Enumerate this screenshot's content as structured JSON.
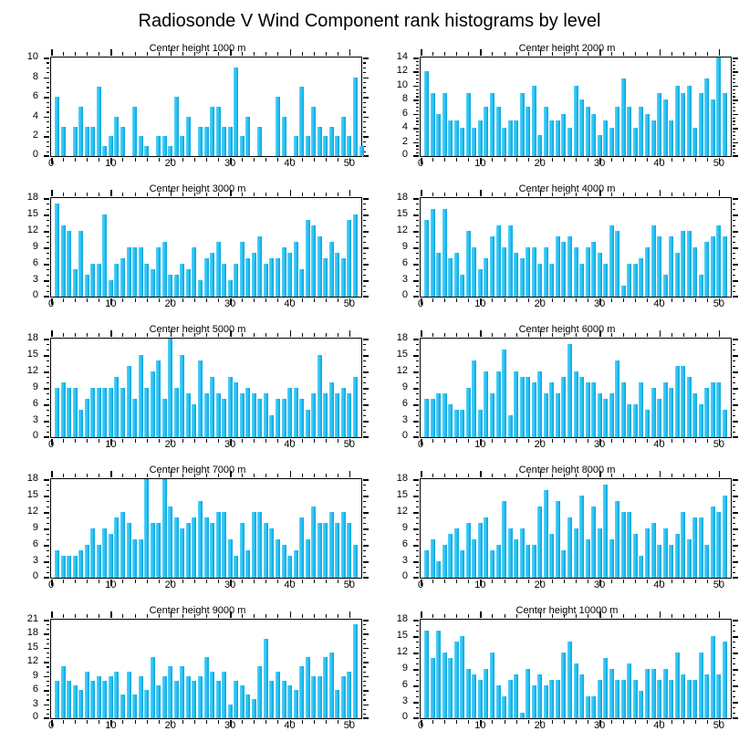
{
  "page_title": "Radiosonde V Wind Component rank histograms by level",
  "colors": {
    "bar_light": "#55d2f8",
    "bar": "#27c0f2",
    "bar_edge": "#0aa3dc",
    "axis": "#000000"
  },
  "chart_data": [
    {
      "type": "bar",
      "title": "Center height 1000 m",
      "xlim": [
        0,
        52
      ],
      "x_ticks": [
        0,
        10,
        20,
        30,
        40,
        50
      ],
      "ylim": [
        0,
        10
      ],
      "y_ticks": [
        0,
        2,
        4,
        6,
        8,
        10
      ],
      "x_first": 1,
      "values": [
        6,
        3,
        0,
        3,
        5,
        3,
        3,
        7,
        1,
        2,
        4,
        3,
        0,
        5,
        2,
        1,
        0,
        2,
        2,
        1,
        6,
        2,
        4,
        0,
        3,
        3,
        5,
        5,
        3,
        3,
        9,
        2,
        4,
        0,
        3,
        0,
        0,
        6,
        4,
        0,
        2,
        7,
        2,
        5,
        3,
        2,
        3,
        2,
        4,
        2,
        8,
        1
      ]
    },
    {
      "type": "bar",
      "title": "Center height 2000 m",
      "xlim": [
        0,
        52
      ],
      "x_ticks": [
        0,
        10,
        20,
        30,
        40,
        50
      ],
      "ylim": [
        0,
        14
      ],
      "y_ticks": [
        0,
        2,
        4,
        6,
        8,
        10,
        12,
        14
      ],
      "x_first": 1,
      "values": [
        12,
        9,
        6,
        9,
        5,
        5,
        4,
        9,
        4,
        5,
        7,
        9,
        7,
        4,
        5,
        5,
        9,
        7,
        10,
        3,
        7,
        5,
        5,
        6,
        4,
        10,
        8,
        7,
        6,
        3,
        5,
        4,
        7,
        11,
        7,
        4,
        7,
        6,
        5,
        9,
        8,
        5,
        10,
        9,
        10,
        4,
        9,
        11,
        8,
        14,
        9
      ]
    },
    {
      "type": "bar",
      "title": "Center height 3000 m",
      "xlim": [
        0,
        52
      ],
      "x_ticks": [
        0,
        10,
        20,
        30,
        40,
        50
      ],
      "ylim": [
        0,
        18
      ],
      "y_ticks": [
        0,
        3,
        6,
        9,
        12,
        15,
        18
      ],
      "x_first": 1,
      "values": [
        17,
        13,
        12,
        5,
        12,
        4,
        6,
        6,
        15,
        3,
        6,
        7,
        9,
        9,
        9,
        6,
        5,
        9,
        10,
        4,
        4,
        6,
        5,
        9,
        3,
        7,
        8,
        10,
        6,
        3,
        6,
        10,
        7,
        8,
        11,
        6,
        7,
        7,
        9,
        8,
        10,
        5,
        14,
        13,
        11,
        7,
        10,
        8,
        7,
        14,
        15
      ]
    },
    {
      "type": "bar",
      "title": "Center height 4000 m",
      "xlim": [
        0,
        52
      ],
      "x_ticks": [
        0,
        10,
        20,
        30,
        40,
        50
      ],
      "ylim": [
        0,
        18
      ],
      "y_ticks": [
        0,
        3,
        6,
        9,
        12,
        15,
        18
      ],
      "x_first": 1,
      "values": [
        14,
        16,
        8,
        16,
        7,
        8,
        4,
        12,
        9,
        5,
        7,
        11,
        13,
        9,
        13,
        8,
        7,
        9,
        9,
        6,
        9,
        6,
        11,
        10,
        11,
        9,
        6,
        9,
        10,
        8,
        6,
        13,
        12,
        2,
        6,
        6,
        7,
        9,
        13,
        11,
        4,
        11,
        8,
        12,
        12,
        9,
        4,
        10,
        11,
        13,
        11
      ]
    },
    {
      "type": "bar",
      "title": "Center height 5000 m",
      "xlim": [
        0,
        52
      ],
      "x_ticks": [
        0,
        10,
        20,
        30,
        40,
        50
      ],
      "ylim": [
        0,
        18
      ],
      "y_ticks": [
        0,
        3,
        6,
        9,
        12,
        15,
        18
      ],
      "x_first": 1,
      "values": [
        9,
        10,
        9,
        9,
        5,
        7,
        9,
        9,
        9,
        9,
        11,
        9,
        13,
        7,
        15,
        9,
        12,
        14,
        7,
        18,
        9,
        15,
        8,
        6,
        14,
        8,
        11,
        8,
        7,
        11,
        10,
        8,
        9,
        8,
        7,
        8,
        4,
        7,
        7,
        9,
        9,
        7,
        5,
        8,
        15,
        8,
        10,
        8,
        9,
        8,
        11
      ]
    },
    {
      "type": "bar",
      "title": "Center height 6000 m",
      "xlim": [
        0,
        52
      ],
      "x_ticks": [
        0,
        10,
        20,
        30,
        40,
        50
      ],
      "ylim": [
        0,
        18
      ],
      "y_ticks": [
        0,
        3,
        6,
        9,
        12,
        15,
        18
      ],
      "x_first": 1,
      "values": [
        7,
        7,
        8,
        8,
        6,
        5,
        5,
        9,
        14,
        5,
        12,
        8,
        12,
        16,
        4,
        12,
        11,
        11,
        10,
        12,
        8,
        10,
        8,
        11,
        17,
        12,
        11,
        10,
        10,
        8,
        7,
        8,
        14,
        10,
        6,
        6,
        10,
        5,
        9,
        7,
        10,
        9,
        13,
        13,
        11,
        8,
        6,
        9,
        10,
        10,
        5
      ]
    },
    {
      "type": "bar",
      "title": "Center height 7000 m",
      "xlim": [
        0,
        52
      ],
      "x_ticks": [
        0,
        10,
        20,
        30,
        40,
        50
      ],
      "ylim": [
        0,
        18
      ],
      "y_ticks": [
        0,
        3,
        6,
        9,
        12,
        15,
        18
      ],
      "x_first": 1,
      "values": [
        5,
        4,
        4,
        4,
        5,
        6,
        9,
        6,
        9,
        8,
        11,
        12,
        10,
        7,
        7,
        18,
        10,
        10,
        18,
        13,
        11,
        9,
        10,
        11,
        14,
        11,
        10,
        12,
        12,
        7,
        4,
        10,
        5,
        12,
        12,
        10,
        9,
        7,
        6,
        4,
        5,
        11,
        7,
        13,
        10,
        10,
        12,
        10,
        12,
        10,
        6
      ]
    },
    {
      "type": "bar",
      "title": "Center height 8000 m",
      "xlim": [
        0,
        52
      ],
      "x_ticks": [
        0,
        10,
        20,
        30,
        40,
        50
      ],
      "ylim": [
        0,
        18
      ],
      "y_ticks": [
        0,
        3,
        6,
        9,
        12,
        15,
        18
      ],
      "x_first": 1,
      "values": [
        5,
        7,
        3,
        6,
        8,
        9,
        5,
        10,
        7,
        10,
        11,
        5,
        6,
        14,
        9,
        7,
        9,
        6,
        6,
        13,
        16,
        8,
        14,
        5,
        11,
        9,
        15,
        7,
        13,
        9,
        17,
        7,
        14,
        12,
        12,
        8,
        4,
        9,
        10,
        6,
        9,
        6,
        8,
        12,
        7,
        11,
        11,
        6,
        13,
        12,
        15
      ]
    },
    {
      "type": "bar",
      "title": "Center height 9000 m",
      "xlim": [
        0,
        52
      ],
      "x_ticks": [
        0,
        10,
        20,
        30,
        40,
        50
      ],
      "ylim": [
        0,
        21
      ],
      "y_ticks": [
        0,
        3,
        6,
        9,
        12,
        15,
        18,
        21
      ],
      "x_first": 1,
      "values": [
        8,
        11,
        8,
        7,
        6,
        10,
        8,
        9,
        8,
        9,
        10,
        5,
        10,
        5,
        9,
        6,
        13,
        7,
        9,
        11,
        8,
        11,
        9,
        8,
        9,
        13,
        10,
        8,
        10,
        3,
        8,
        7,
        5,
        4,
        11,
        17,
        8,
        10,
        8,
        7,
        6,
        11,
        13,
        9,
        9,
        13,
        14,
        6,
        9,
        10,
        20
      ]
    },
    {
      "type": "bar",
      "title": "Center height 10000 m",
      "xlim": [
        0,
        52
      ],
      "x_ticks": [
        0,
        10,
        20,
        30,
        40,
        50
      ],
      "ylim": [
        0,
        18
      ],
      "y_ticks": [
        0,
        3,
        6,
        9,
        12,
        15,
        18
      ],
      "x_first": 1,
      "values": [
        16,
        11,
        16,
        12,
        11,
        14,
        15,
        9,
        8,
        7,
        9,
        12,
        6,
        4,
        7,
        8,
        1,
        9,
        6,
        8,
        6,
        7,
        7,
        12,
        14,
        10,
        8,
        4,
        4,
        7,
        11,
        9,
        7,
        7,
        10,
        7,
        5,
        9,
        9,
        7,
        9,
        7,
        12,
        8,
        7,
        7,
        12,
        8,
        15,
        8,
        14
      ]
    }
  ]
}
